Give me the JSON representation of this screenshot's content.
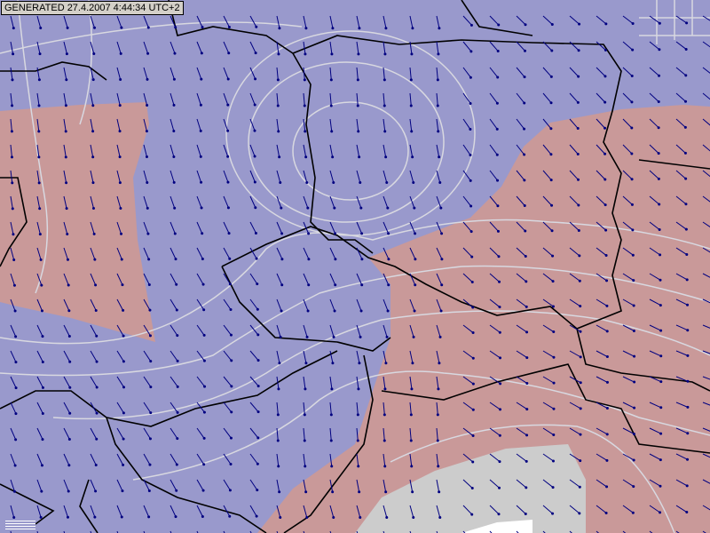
{
  "header": {
    "generated_stamp": "GENERATED 27.4.2007 4:44:34 UTC+2"
  },
  "map": {
    "colors": {
      "background_field": "#9999cc",
      "warm_field": "#c99999",
      "high_field": "#cccccc",
      "isolines": "#d8d8e0",
      "borders": "#000000",
      "wind_arrows": "#000080"
    },
    "icons": [
      "wind-arrow-icon",
      "legend-icon"
    ]
  }
}
